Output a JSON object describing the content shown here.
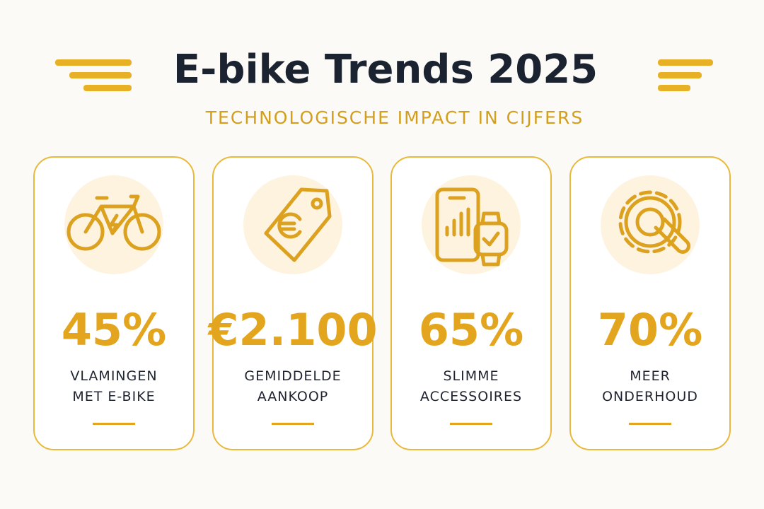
{
  "header": {
    "title": "E-bike Trends 2025",
    "subtitle": "TECHNOLOGISCHE IMPACT IN CIJFERS"
  },
  "cards": [
    {
      "value": "45%",
      "label": [
        "VLAMINGEN",
        "MET E-BIKE"
      ]
    },
    {
      "value": "€2.100",
      "label": [
        "GEMIDDELDE",
        "AANKOOP"
      ]
    },
    {
      "value": "65%",
      "label": [
        "SLIMME",
        "ACCESSOIRES"
      ]
    },
    {
      "value": "70%",
      "label": [
        "MEER",
        "ONDERHOUD"
      ]
    }
  ]
}
